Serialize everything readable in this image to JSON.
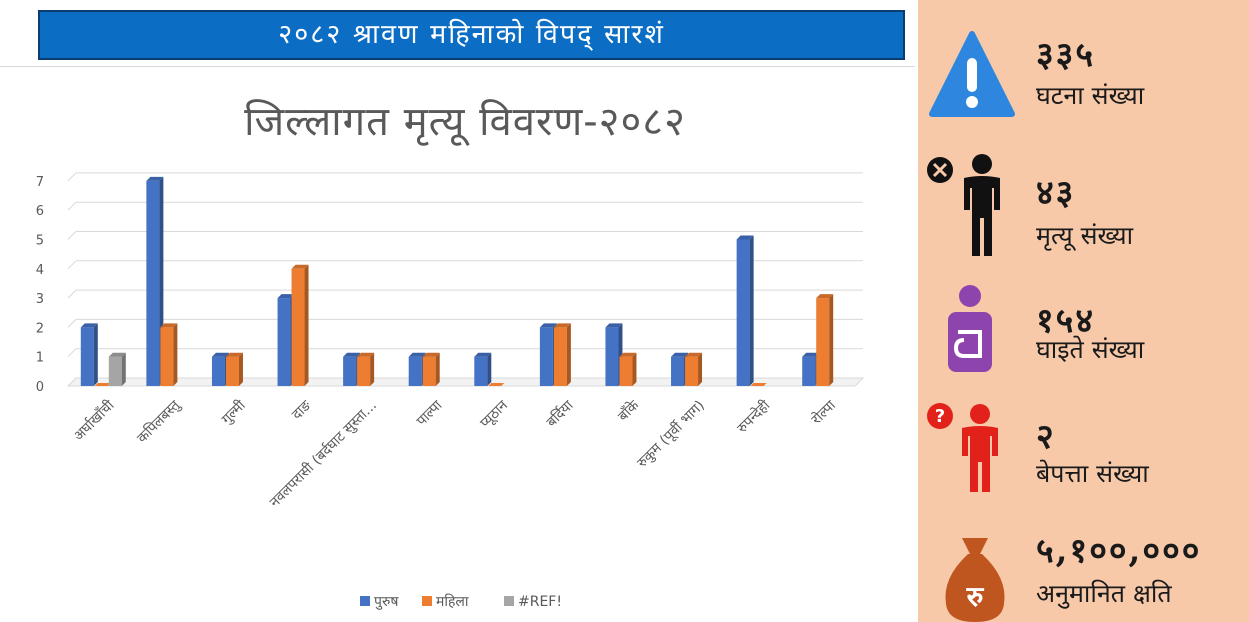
{
  "banner": {
    "title": "२०८२ श्रावण महिनाको विपद् सारशं"
  },
  "chart_data": {
    "type": "bar",
    "title": "जिल्लागत मृत्यू विवरण-२०८२",
    "categories": [
      "अर्घाखाँची",
      "कपिलबस्तु",
      "गुल्मी",
      "दाङ",
      "नवलपरासी (बर्दघाट सुस्ता...",
      "पाल्पा",
      "प्यूठान",
      "बर्दिया",
      "बाँके",
      "रुकुम (पूर्वी भाग)",
      "रुपन्देही",
      "रोल्पा"
    ],
    "series": [
      {
        "name": "पुरुष",
        "color": "#4472c4",
        "values": [
          2,
          7,
          1,
          3,
          1,
          1,
          1,
          2,
          2,
          1,
          5,
          1
        ]
      },
      {
        "name": "महिला",
        "color": "#ed7d31",
        "values": [
          0,
          2,
          1,
          4,
          1,
          1,
          0,
          2,
          1,
          1,
          0,
          3
        ]
      },
      {
        "name": "#REF!",
        "color": "#a5a5a5",
        "values": [
          1,
          0,
          0,
          0,
          0,
          0,
          0,
          0,
          0,
          0,
          0,
          0
        ]
      }
    ],
    "ylim": [
      0,
      7
    ],
    "yticks": [
      "0",
      "1",
      "2",
      "3",
      "4",
      "5",
      "6",
      "7"
    ],
    "grid": true,
    "legend": "bottom"
  },
  "stats": [
    {
      "value": "३३५",
      "label": "घटना संख्या",
      "icon": "warning-icon",
      "color": "#2e86de"
    },
    {
      "value": "४३",
      "label": "मृत्यू संख्या",
      "icon": "deceased-person-icon",
      "color": "#111111"
    },
    {
      "value": "१५४",
      "label": "घाइते संख्या",
      "icon": "injured-person-icon",
      "color": "#8e44ad"
    },
    {
      "value": "२",
      "label": "बेपत्ता संख्या",
      "icon": "missing-person-icon",
      "color": "#e3211b"
    },
    {
      "value": "५,१००,०००",
      "label": "अनुमानित क्षति",
      "icon": "money-bag-icon",
      "color": "#c0561f"
    }
  ]
}
